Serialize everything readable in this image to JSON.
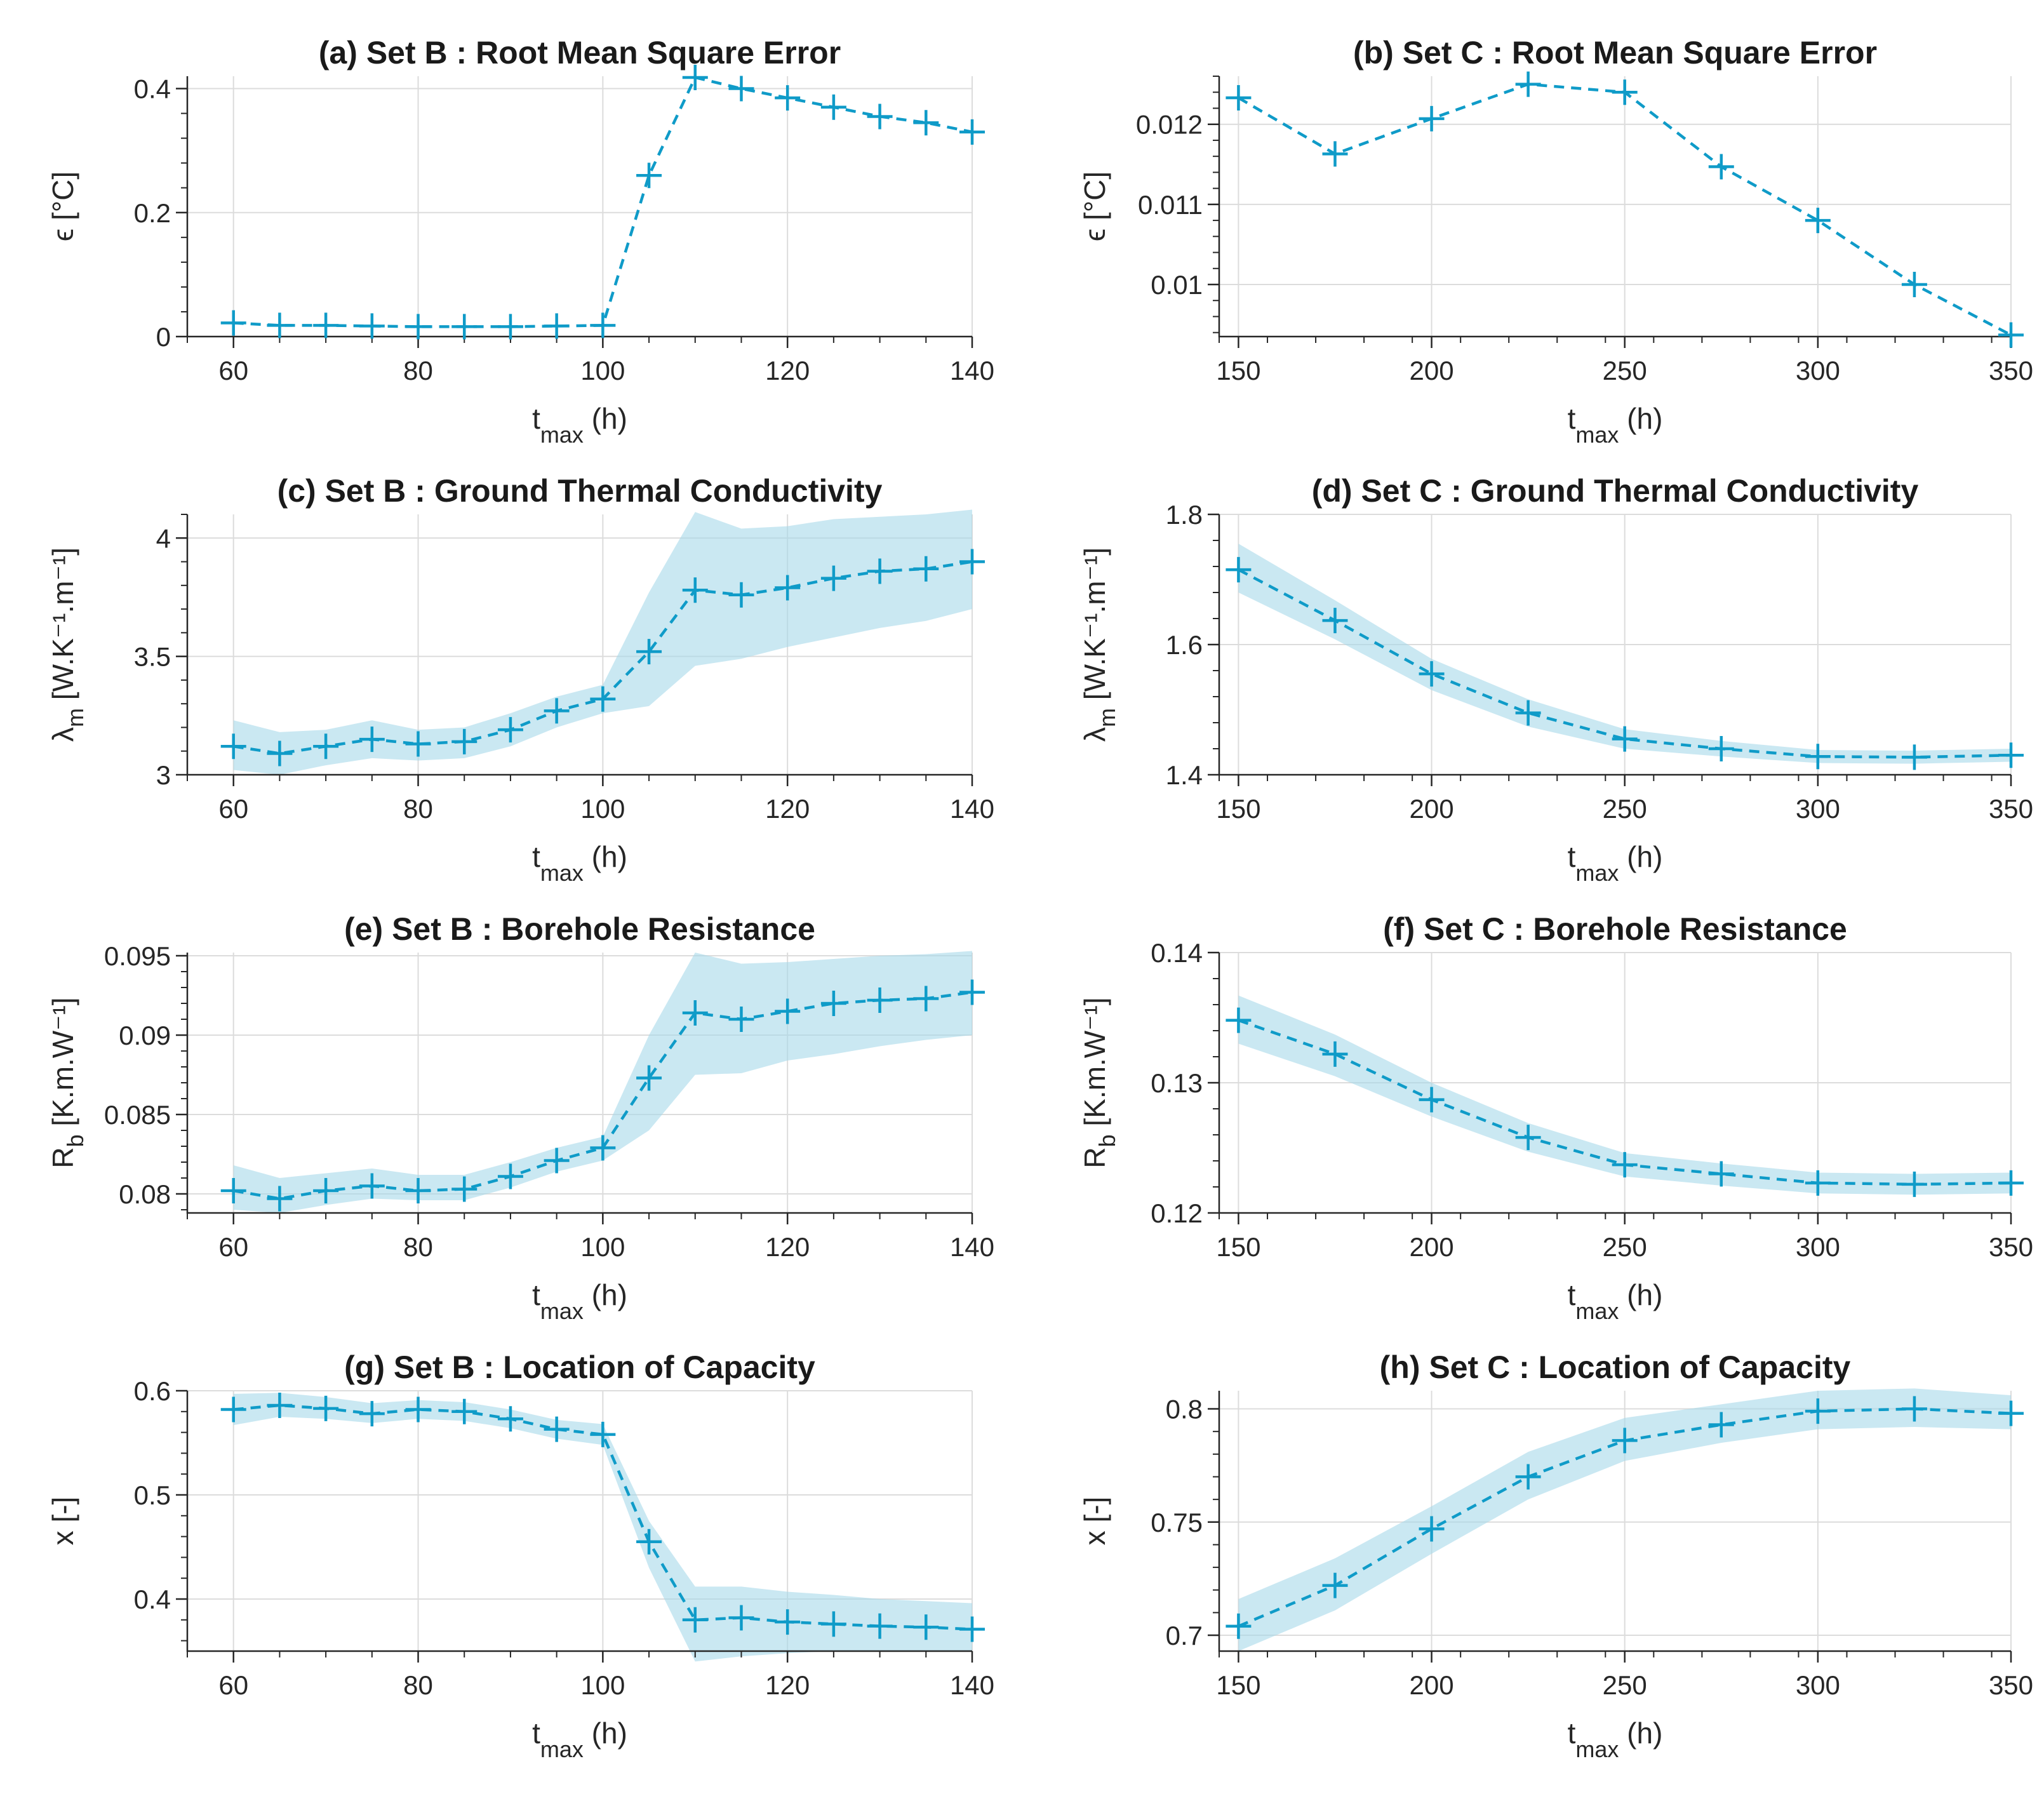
{
  "colors": {
    "series": "#0f9bc8",
    "band": "#a6d8ea",
    "axis": "#262626"
  },
  "chart_data": [
    {
      "id": "a",
      "type": "line",
      "title": "(a) Set B : Root Mean Square Error",
      "xlabel": {
        "main": "t",
        "sub": "max",
        "unit": " (h)"
      },
      "ylabel": {
        "main": "ϵ",
        "sub": "",
        "sup": "",
        "unit": " [°C]"
      },
      "xlim": [
        55,
        140
      ],
      "ylim": [
        0,
        0.42
      ],
      "xticks": [
        60,
        80,
        100,
        120,
        140
      ],
      "xticklabels": [
        "60",
        "80",
        "100",
        "120",
        "140"
      ],
      "yticks": [
        0,
        0.2,
        0.4
      ],
      "yticklabels": [
        "0",
        "0.2",
        "0.4"
      ],
      "x": [
        60,
        65,
        70,
        75,
        80,
        85,
        90,
        95,
        100,
        105,
        110,
        115,
        120,
        125,
        130,
        135,
        140
      ],
      "y": [
        0.022,
        0.018,
        0.018,
        0.017,
        0.016,
        0.016,
        0.016,
        0.017,
        0.018,
        0.26,
        0.418,
        0.4,
        0.385,
        0.37,
        0.355,
        0.345,
        0.33
      ],
      "band": null
    },
    {
      "id": "b",
      "type": "line",
      "title": "(b) Set C : Root Mean Square Error",
      "xlabel": {
        "main": "t",
        "sub": "max",
        "unit": " (h)"
      },
      "ylabel": {
        "main": "ϵ",
        "sub": "",
        "sup": "",
        "unit": " [°C]"
      },
      "xlim": [
        145,
        350
      ],
      "ylim": [
        0.00935,
        0.0126
      ],
      "xticks": [
        150,
        200,
        250,
        300,
        350
      ],
      "xticklabels": [
        "150",
        "200",
        "250",
        "300",
        "350"
      ],
      "yticks": [
        0.01,
        0.011,
        0.012
      ],
      "yticklabels": [
        "0.01",
        "0.011",
        "0.012"
      ],
      "x": [
        150,
        175,
        200,
        225,
        250,
        275,
        300,
        325,
        350
      ],
      "y": [
        0.01233,
        0.01163,
        0.01207,
        0.0125,
        0.0124,
        0.01147,
        0.0108,
        0.01,
        0.00937
      ],
      "band": null
    },
    {
      "id": "c",
      "type": "line",
      "title": "(c) Set B : Ground Thermal Conductivity",
      "xlabel": {
        "main": "t",
        "sub": "max",
        "unit": " (h)"
      },
      "ylabel": {
        "main": "λ",
        "sub": "m",
        "sup": "",
        "unit": " [W.K⁻¹.m⁻¹]"
      },
      "xlim": [
        55,
        140
      ],
      "ylim": [
        3,
        4.1
      ],
      "xticks": [
        60,
        80,
        100,
        120,
        140
      ],
      "xticklabels": [
        "60",
        "80",
        "100",
        "120",
        "140"
      ],
      "yticks": [
        3,
        3.5,
        4
      ],
      "yticklabels": [
        "3",
        "3.5",
        "4"
      ],
      "x": [
        60,
        65,
        70,
        75,
        80,
        85,
        90,
        95,
        100,
        105,
        110,
        115,
        120,
        125,
        130,
        135,
        140
      ],
      "y": [
        3.12,
        3.09,
        3.12,
        3.15,
        3.13,
        3.14,
        3.19,
        3.27,
        3.32,
        3.52,
        3.78,
        3.76,
        3.79,
        3.83,
        3.86,
        3.87,
        3.9
      ],
      "band": {
        "lower": [
          3.02,
          3.0,
          3.04,
          3.07,
          3.06,
          3.07,
          3.12,
          3.2,
          3.26,
          3.29,
          3.46,
          3.49,
          3.54,
          3.58,
          3.62,
          3.65,
          3.7
        ],
        "upper": [
          3.23,
          3.18,
          3.19,
          3.23,
          3.19,
          3.2,
          3.26,
          3.33,
          3.38,
          3.77,
          4.11,
          4.04,
          4.05,
          4.08,
          4.09,
          4.1,
          4.12
        ]
      }
    },
    {
      "id": "d",
      "type": "line",
      "title": "(d) Set C : Ground Thermal Conductivity",
      "xlabel": {
        "main": "t",
        "sub": "max",
        "unit": " (h)"
      },
      "ylabel": {
        "main": "λ",
        "sub": "m",
        "sup": "",
        "unit": " [W.K⁻¹.m⁻¹]"
      },
      "xlim": [
        145,
        350
      ],
      "ylim": [
        1.4,
        1.8
      ],
      "xticks": [
        150,
        200,
        250,
        300,
        350
      ],
      "xticklabels": [
        "150",
        "200",
        "250",
        "300",
        "350"
      ],
      "yticks": [
        1.4,
        1.6,
        1.8
      ],
      "yticklabels": [
        "1.4",
        "1.6",
        "1.8"
      ],
      "x": [
        150,
        175,
        200,
        225,
        250,
        275,
        300,
        325,
        350
      ],
      "y": [
        1.715,
        1.637,
        1.555,
        1.495,
        1.455,
        1.44,
        1.428,
        1.427,
        1.43
      ],
      "band": {
        "lower": [
          1.68,
          1.608,
          1.53,
          1.474,
          1.44,
          1.428,
          1.418,
          1.417,
          1.42
        ],
        "upper": [
          1.755,
          1.668,
          1.578,
          1.516,
          1.47,
          1.452,
          1.438,
          1.437,
          1.44
        ]
      }
    },
    {
      "id": "e",
      "type": "line",
      "title": "(e) Set B : Borehole Resistance",
      "xlabel": {
        "main": "t",
        "sub": "max",
        "unit": " (h)"
      },
      "ylabel": {
        "main": "R",
        "sub": "b",
        "sup": "",
        "unit": " [K.m.W⁻¹]"
      },
      "xlim": [
        55,
        140
      ],
      "ylim": [
        0.0788,
        0.0952
      ],
      "xticks": [
        60,
        80,
        100,
        120,
        140
      ],
      "xticklabels": [
        "60",
        "80",
        "100",
        "120",
        "140"
      ],
      "yticks": [
        0.08,
        0.085,
        0.09,
        0.095
      ],
      "yticklabels": [
        "0.08",
        "0.085",
        "0.09",
        "0.095"
      ],
      "x": [
        60,
        65,
        70,
        75,
        80,
        85,
        90,
        95,
        100,
        105,
        110,
        115,
        120,
        125,
        130,
        135,
        140
      ],
      "y": [
        0.0802,
        0.0797,
        0.0802,
        0.0805,
        0.0802,
        0.0803,
        0.0811,
        0.0821,
        0.0829,
        0.0873,
        0.0914,
        0.091,
        0.0915,
        0.092,
        0.0922,
        0.0923,
        0.0927
      ],
      "band": {
        "lower": [
          0.079,
          0.0788,
          0.0793,
          0.0797,
          0.0796,
          0.0796,
          0.0804,
          0.0814,
          0.0821,
          0.084,
          0.0875,
          0.0876,
          0.0884,
          0.0888,
          0.0893,
          0.0897,
          0.09
        ],
        "upper": [
          0.0818,
          0.081,
          0.0813,
          0.0816,
          0.0812,
          0.0812,
          0.082,
          0.0829,
          0.0836,
          0.09,
          0.0952,
          0.0945,
          0.0946,
          0.0948,
          0.095,
          0.0951,
          0.0953
        ]
      }
    },
    {
      "id": "f",
      "type": "line",
      "title": "(f) Set C : Borehole Resistance",
      "xlabel": {
        "main": "t",
        "sub": "max",
        "unit": " (h)"
      },
      "ylabel": {
        "main": "R",
        "sub": "b",
        "sup": "",
        "unit": " [K.m.W⁻¹]"
      },
      "xlim": [
        145,
        350
      ],
      "ylim": [
        0.12,
        0.14
      ],
      "xticks": [
        150,
        200,
        250,
        300,
        350
      ],
      "xticklabels": [
        "150",
        "200",
        "250",
        "300",
        "350"
      ],
      "yticks": [
        0.12,
        0.13,
        0.14
      ],
      "yticklabels": [
        "0.12",
        "0.13",
        "0.14"
      ],
      "x": [
        150,
        175,
        200,
        225,
        250,
        275,
        300,
        325,
        350
      ],
      "y": [
        0.1348,
        0.1322,
        0.1287,
        0.1258,
        0.1237,
        0.123,
        0.1223,
        0.1222,
        0.1223
      ],
      "band": {
        "lower": [
          0.133,
          0.1305,
          0.1274,
          0.1247,
          0.1228,
          0.1221,
          0.1215,
          0.1214,
          0.1215
        ],
        "upper": [
          0.1367,
          0.1337,
          0.13,
          0.1269,
          0.1246,
          0.1238,
          0.1231,
          0.123,
          0.1231
        ]
      }
    },
    {
      "id": "g",
      "type": "line",
      "title": "(g) Set B : Location of Capacity",
      "xlabel": {
        "main": "t",
        "sub": "max",
        "unit": " (h)"
      },
      "ylabel": {
        "main": "x",
        "sub": "",
        "sup": "",
        "unit": " [-]"
      },
      "xlim": [
        55,
        140
      ],
      "ylim": [
        0.35,
        0.6
      ],
      "xticks": [
        60,
        80,
        100,
        120,
        140
      ],
      "xticklabels": [
        "60",
        "80",
        "100",
        "120",
        "140"
      ],
      "yticks": [
        0.4,
        0.5,
        0.6
      ],
      "yticklabels": [
        "0.4",
        "0.5",
        "0.6"
      ],
      "x": [
        60,
        65,
        70,
        75,
        80,
        85,
        90,
        95,
        100,
        105,
        110,
        115,
        120,
        125,
        130,
        135,
        140
      ],
      "y": [
        0.582,
        0.586,
        0.583,
        0.578,
        0.582,
        0.58,
        0.573,
        0.563,
        0.558,
        0.455,
        0.38,
        0.382,
        0.378,
        0.376,
        0.374,
        0.373,
        0.371
      ],
      "band": {
        "lower": [
          0.567,
          0.575,
          0.573,
          0.569,
          0.573,
          0.571,
          0.564,
          0.554,
          0.548,
          0.43,
          0.34,
          0.345,
          0.348,
          0.35,
          0.35,
          0.35,
          0.35
        ],
        "upper": [
          0.597,
          0.598,
          0.594,
          0.588,
          0.591,
          0.589,
          0.582,
          0.572,
          0.568,
          0.475,
          0.412,
          0.412,
          0.407,
          0.404,
          0.4,
          0.398,
          0.396
        ]
      }
    },
    {
      "id": "h",
      "type": "line",
      "title": "(h) Set C : Location of Capacity",
      "xlabel": {
        "main": "t",
        "sub": "max",
        "unit": " (h)"
      },
      "ylabel": {
        "main": "x",
        "sub": "",
        "sup": "",
        "unit": " [-]"
      },
      "xlim": [
        145,
        350
      ],
      "ylim": [
        0.693,
        0.808
      ],
      "xticks": [
        150,
        200,
        250,
        300,
        350
      ],
      "xticklabels": [
        "150",
        "200",
        "250",
        "300",
        "350"
      ],
      "yticks": [
        0.7,
        0.75,
        0.8
      ],
      "yticklabels": [
        "0.7",
        "0.75",
        "0.8"
      ],
      "x": [
        150,
        175,
        200,
        225,
        250,
        275,
        300,
        325,
        350
      ],
      "y": [
        0.704,
        0.722,
        0.747,
        0.77,
        0.786,
        0.793,
        0.799,
        0.8,
        0.798
      ],
      "band": {
        "lower": [
          0.693,
          0.711,
          0.736,
          0.76,
          0.777,
          0.785,
          0.791,
          0.792,
          0.791
        ],
        "upper": [
          0.716,
          0.734,
          0.757,
          0.781,
          0.796,
          0.802,
          0.808,
          0.809,
          0.806
        ]
      }
    }
  ]
}
